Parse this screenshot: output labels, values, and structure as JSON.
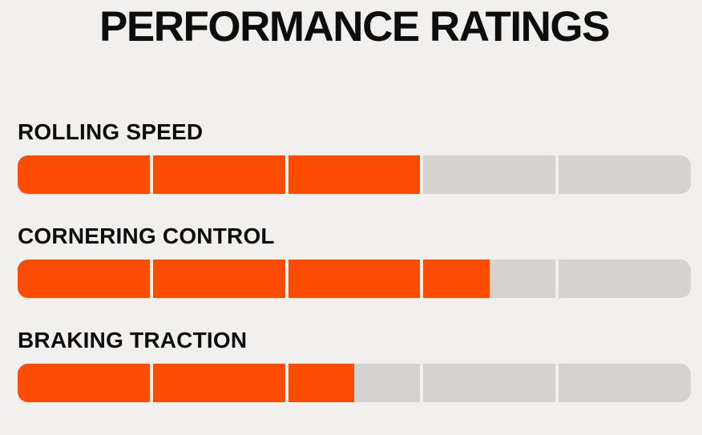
{
  "page": {
    "title": "PERFORMANCE RATINGS"
  },
  "colors": {
    "fill": "#FC4C02",
    "track": "#D5D3D0",
    "background": "#F1F0EE",
    "text": "#0D0D0D"
  },
  "ratings": [
    {
      "label": "ROLLING SPEED",
      "value": 3,
      "max": 5
    },
    {
      "label": "CORNERING CONTROL",
      "value": 3.5,
      "max": 5
    },
    {
      "label": "BRAKING TRACTION",
      "value": 2.5,
      "max": 5
    }
  ],
  "chart_data": {
    "type": "bar",
    "title": "PERFORMANCE RATINGS",
    "orientation": "horizontal",
    "categories": [
      "ROLLING SPEED",
      "CORNERING CONTROL",
      "BRAKING TRACTION"
    ],
    "values": [
      3,
      3.5,
      2.5
    ],
    "value_range": [
      0,
      5
    ],
    "segments_per_bar": 5,
    "xlabel": "",
    "ylabel": "",
    "legend": "none",
    "grid": "off"
  }
}
